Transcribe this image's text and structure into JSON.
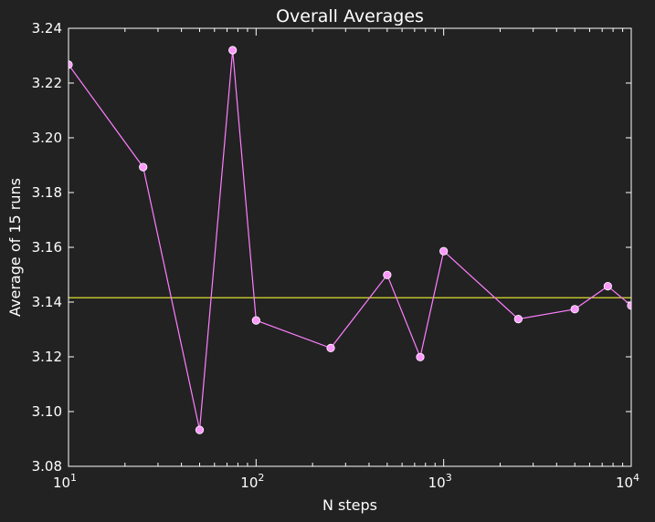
{
  "chart_data": {
    "type": "line",
    "title": "Overall Averages",
    "xlabel": "N steps",
    "ylabel": "Average of 15 runs",
    "x_scale": "log",
    "xlim": [
      10,
      10000
    ],
    "ylim": [
      3.08,
      3.24
    ],
    "x_ticks": [
      {
        "value": 10,
        "base": "10",
        "exp": "1"
      },
      {
        "value": 100,
        "base": "10",
        "exp": "2"
      },
      {
        "value": 1000,
        "base": "10",
        "exp": "3"
      },
      {
        "value": 10000,
        "base": "10",
        "exp": "4"
      }
    ],
    "y_ticks": [
      {
        "value": 3.08,
        "label": "3.08"
      },
      {
        "value": 3.1,
        "label": "3.10"
      },
      {
        "value": 3.12,
        "label": "3.12"
      },
      {
        "value": 3.14,
        "label": "3.14"
      },
      {
        "value": 3.16,
        "label": "3.16"
      },
      {
        "value": 3.18,
        "label": "3.18"
      },
      {
        "value": 3.2,
        "label": "3.20"
      },
      {
        "value": 3.22,
        "label": "3.22"
      },
      {
        "value": 3.24,
        "label": "3.24"
      }
    ],
    "grid": false,
    "series": [
      {
        "color": "#ff7fff",
        "marker_color": "#ff99ff",
        "points": [
          {
            "x": 10,
            "y": 3.2267
          },
          {
            "x": 25,
            "y": 3.1893
          },
          {
            "x": 50,
            "y": 3.0933
          },
          {
            "x": 75,
            "y": 3.232
          },
          {
            "x": 100,
            "y": 3.1333
          },
          {
            "x": 250,
            "y": 3.1232
          },
          {
            "x": 500,
            "y": 3.1499
          },
          {
            "x": 750,
            "y": 3.1199
          },
          {
            "x": 1000,
            "y": 3.1586
          },
          {
            "x": 2500,
            "y": 3.1338
          },
          {
            "x": 5000,
            "y": 3.1374
          },
          {
            "x": 7500,
            "y": 3.1458
          },
          {
            "x": 10000,
            "y": 3.1387
          }
        ]
      }
    ],
    "reference_line": {
      "y": 3.14159,
      "color": "#dddd33"
    }
  },
  "colors": {
    "background": "#222222",
    "axes": "#ffffff"
  }
}
